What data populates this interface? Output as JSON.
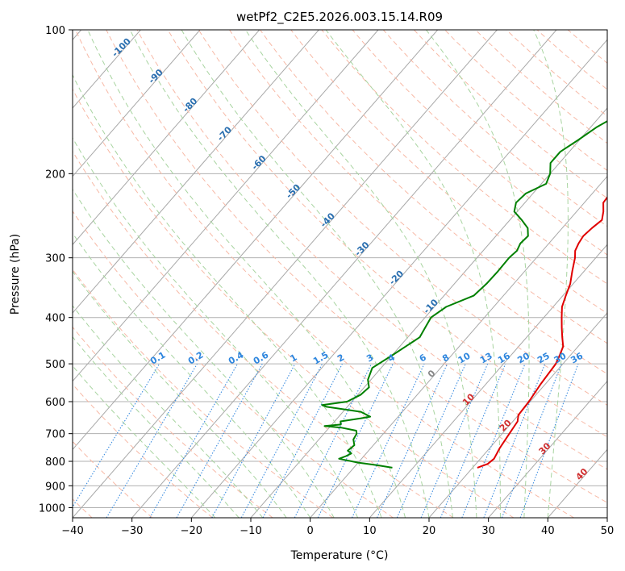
{
  "chart_data": {
    "type": "line",
    "title": "wetPf2_C2E5.2026.003.15.14.R09",
    "xlabel": "Temperature (°C)",
    "ylabel": "Pressure (hPa)",
    "xlim": [
      -40,
      50
    ],
    "ylim": [
      1050,
      100
    ],
    "y_scale": "log",
    "grid": true,
    "x_ticks": [
      -40,
      -30,
      -20,
      -10,
      0,
      10,
      20,
      30,
      40,
      50
    ],
    "y_ticks": [
      100,
      200,
      300,
      400,
      500,
      600,
      700,
      800,
      900,
      1000
    ],
    "series": [
      {
        "color": "#e00000",
        "points": [
          [
            3.8,
            100
          ],
          [
            4.2,
            110
          ],
          [
            4.5,
            120
          ],
          [
            4.8,
            130
          ],
          [
            4.5,
            140
          ],
          [
            4.6,
            150
          ],
          [
            5.5,
            160
          ],
          [
            7.0,
            170
          ],
          [
            8.5,
            180
          ],
          [
            9.5,
            190
          ],
          [
            8.5,
            200
          ],
          [
            4.0,
            210
          ],
          [
            3.0,
            220
          ],
          [
            3.2,
            230
          ],
          [
            4.5,
            240
          ],
          [
            5.5,
            250
          ],
          [
            5.0,
            260
          ],
          [
            4.7,
            270
          ],
          [
            5.0,
            280
          ],
          [
            5.5,
            290
          ],
          [
            6.5,
            300
          ],
          [
            8.0,
            320
          ],
          [
            9.5,
            340
          ],
          [
            10.5,
            360
          ],
          [
            11.5,
            380
          ],
          [
            13.0,
            400
          ],
          [
            14.5,
            420
          ],
          [
            16.0,
            440
          ],
          [
            17.5,
            460
          ],
          [
            18.2,
            480
          ],
          [
            18.8,
            500
          ],
          [
            19.2,
            550
          ],
          [
            19.8,
            600
          ],
          [
            20.0,
            640
          ],
          [
            20.8,
            660
          ],
          [
            21.2,
            700
          ],
          [
            21.7,
            750
          ],
          [
            22.3,
            790
          ],
          [
            22.0,
            810
          ],
          [
            20.8,
            825
          ]
        ]
      },
      {
        "color": "#008000",
        "points": [
          [
            -0.5,
            100
          ],
          [
            -1.5,
            110
          ],
          [
            -2.8,
            120
          ],
          [
            -4.5,
            130
          ],
          [
            -5.8,
            140
          ],
          [
            -7.0,
            150
          ],
          [
            -9.0,
            160
          ],
          [
            -10.2,
            170
          ],
          [
            -11.5,
            180
          ],
          [
            -11.5,
            190
          ],
          [
            -10.0,
            200
          ],
          [
            -9.2,
            210
          ],
          [
            -11.2,
            220
          ],
          [
            -11.5,
            230
          ],
          [
            -10.5,
            240
          ],
          [
            -8.0,
            250
          ],
          [
            -5.8,
            260
          ],
          [
            -4.6,
            270
          ],
          [
            -4.8,
            280
          ],
          [
            -4.3,
            290
          ],
          [
            -4.6,
            300
          ],
          [
            -4.5,
            320
          ],
          [
            -4.6,
            340
          ],
          [
            -5.0,
            360
          ],
          [
            -8.0,
            380
          ],
          [
            -9.0,
            400
          ],
          [
            -8.5,
            420
          ],
          [
            -8.0,
            440
          ],
          [
            -9.0,
            460
          ],
          [
            -10.0,
            480
          ],
          [
            -11.5,
            510
          ],
          [
            -10.5,
            540
          ],
          [
            -9.2,
            560
          ],
          [
            -9.5,
            580
          ],
          [
            -10.8,
            600
          ],
          [
            -14.5,
            610
          ],
          [
            -13.5,
            615
          ],
          [
            -7.0,
            630
          ],
          [
            -4.7,
            645
          ],
          [
            -6.0,
            650
          ],
          [
            -9.0,
            660
          ],
          [
            -8.5,
            670
          ],
          [
            -11.0,
            675
          ],
          [
            -8.0,
            680
          ],
          [
            -5.0,
            690
          ],
          [
            -4.5,
            700
          ],
          [
            -4.2,
            720
          ],
          [
            -3.2,
            740
          ],
          [
            -3.5,
            760
          ],
          [
            -2.5,
            770
          ],
          [
            -3.0,
            780
          ],
          [
            -3.8,
            790
          ],
          [
            0.0,
            805
          ],
          [
            3.5,
            815
          ],
          [
            6.5,
            825
          ]
        ]
      }
    ],
    "dry_adiabat_labels": [
      "-100",
      "-90",
      "-80",
      "-70",
      "-60",
      "-50",
      "-40",
      "-30",
      "-20",
      "-10",
      "0",
      "10",
      "20",
      "30",
      "40"
    ],
    "mixing_ratio_labels": [
      "0.1",
      "0.2",
      "0.4",
      "0.6",
      "1",
      "1.5",
      "2",
      "3",
      "4",
      "6",
      "8",
      "10",
      "13",
      "16",
      "20",
      "25",
      "30",
      "36"
    ]
  }
}
